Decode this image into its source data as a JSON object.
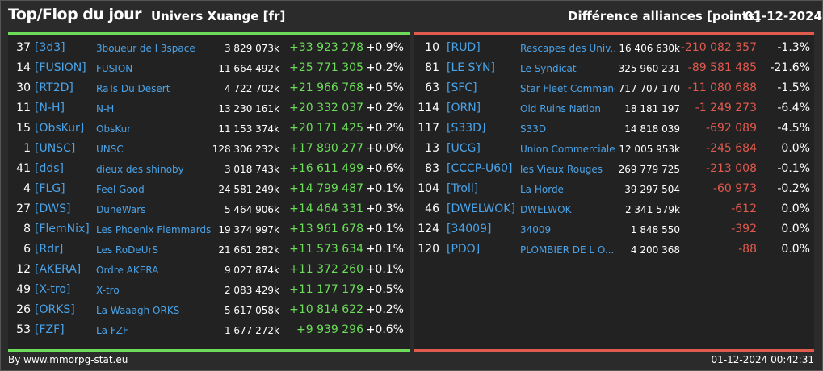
{
  "header": {
    "title": "Top/Flop du jour",
    "universe": "Univers Xuange [fr]",
    "difference_label": "Différence alliances [points]",
    "date": "01-12-2024"
  },
  "top": [
    {
      "rank": "37",
      "tag": "[3d3]",
      "name": "3boueur de l 3space",
      "points": "3 829 073k",
      "diff": "+33 923 278",
      "pct": "+0.9%"
    },
    {
      "rank": "14",
      "tag": "[FUSION]",
      "name": "FUSION",
      "points": "11 664 492k",
      "diff": "+25 771 305",
      "pct": "+0.2%"
    },
    {
      "rank": "30",
      "tag": "[RT2D]",
      "name": "RaTs Du Desert",
      "points": "4 722 702k",
      "diff": "+21 966 768",
      "pct": "+0.5%"
    },
    {
      "rank": "11",
      "tag": "[N-H]",
      "name": "N-H",
      "points": "13 230 161k",
      "diff": "+20 332 037",
      "pct": "+0.2%"
    },
    {
      "rank": "15",
      "tag": "[ObsKur]",
      "name": "ObsKur",
      "points": "11 153 374k",
      "diff": "+20 171 425",
      "pct": "+0.2%"
    },
    {
      "rank": "1",
      "tag": "[UNSC]",
      "name": "UNSC",
      "points": "128 306 232k",
      "diff": "+17 890 277",
      "pct": "+0.0%"
    },
    {
      "rank": "41",
      "tag": "[dds]",
      "name": "dieux des shinoby",
      "points": "3 018 743k",
      "diff": "+16 611 499",
      "pct": "+0.6%"
    },
    {
      "rank": "4",
      "tag": "[FLG]",
      "name": "Feel Good",
      "points": "24 581 249k",
      "diff": "+14 799 487",
      "pct": "+0.1%"
    },
    {
      "rank": "27",
      "tag": "[DWS]",
      "name": "DuneWars",
      "points": "5 464 906k",
      "diff": "+14 464 331",
      "pct": "+0.3%"
    },
    {
      "rank": "8",
      "tag": "[FlemNix]",
      "name": "Les Phoenix Flemmards",
      "points": "19 374 997k",
      "diff": "+13 961 678",
      "pct": "+0.1%"
    },
    {
      "rank": "6",
      "tag": "[Rdr]",
      "name": "Les RoDeUrS",
      "points": "21 661 282k",
      "diff": "+11 573 634",
      "pct": "+0.1%"
    },
    {
      "rank": "12",
      "tag": "[AKERA]",
      "name": "Ordre AKERA",
      "points": "9 027 874k",
      "diff": "+11 372 260",
      "pct": "+0.1%"
    },
    {
      "rank": "49",
      "tag": "[X-tro]",
      "name": "X-tro",
      "points": "2 083 429k",
      "diff": "+11 177 179",
      "pct": "+0.5%"
    },
    {
      "rank": "26",
      "tag": "[ORKS]",
      "name": "La Waaagh ORKS",
      "points": "5 617 058k",
      "diff": "+10 814 622",
      "pct": "+0.2%"
    },
    {
      "rank": "53",
      "tag": "[FZF]",
      "name": "La FZF",
      "points": "1 677 272k",
      "diff": "+9 939 296",
      "pct": "+0.6%"
    }
  ],
  "flop": [
    {
      "rank": "10",
      "tag": "[RUD]",
      "name": "Rescapes des Univ...",
      "points": "16 406 630k",
      "diff": "-210 082 357",
      "pct": "-1.3%"
    },
    {
      "rank": "81",
      "tag": "[LE SYN]",
      "name": "Le Syndicat",
      "points": "325 960 231",
      "diff": "-89 581 485",
      "pct": "-21.6%"
    },
    {
      "rank": "63",
      "tag": "[SFC]",
      "name": "Star Fleet Command",
      "points": "717 707 170",
      "diff": "-11 080 688",
      "pct": "-1.5%"
    },
    {
      "rank": "114",
      "tag": "[ORN]",
      "name": "Old Ruins Nation",
      "points": "18 181 197",
      "diff": "-1 249 273",
      "pct": "-6.4%"
    },
    {
      "rank": "117",
      "tag": "[S33D]",
      "name": "S33D",
      "points": "14 818 039",
      "diff": "-692 089",
      "pct": "-4.5%"
    },
    {
      "rank": "13",
      "tag": "[UCG]",
      "name": "Union Commerciale...",
      "points": "12 005 953k",
      "diff": "-245 684",
      "pct": "0.0%"
    },
    {
      "rank": "83",
      "tag": "[CCCP-U60]",
      "name": "les Vieux Rouges",
      "points": "269 779 725",
      "diff": "-213 008",
      "pct": "-0.1%"
    },
    {
      "rank": "104",
      "tag": "[Troll]",
      "name": "La Horde",
      "points": "39 297 504",
      "diff": "-60 973",
      "pct": "-0.2%"
    },
    {
      "rank": "46",
      "tag": "[DWELWOK]",
      "name": "DWELWOK",
      "points": "2 341 579k",
      "diff": "-612",
      "pct": "0.0%"
    },
    {
      "rank": "124",
      "tag": "[34009]",
      "name": "34009",
      "points": "1 848 550",
      "diff": "-392",
      "pct": "0.0%"
    },
    {
      "rank": "120",
      "tag": "[PDO]",
      "name": "PLOMBIER DE L O...",
      "points": "4 200 368",
      "diff": "-88",
      "pct": "0.0%"
    }
  ],
  "footer": {
    "source": "By www.mmorpg-stat.eu",
    "timestamp": "01-12-2024 00:42:31"
  },
  "colors": {
    "gain": "#6ddc5a",
    "loss": "#e05a4e",
    "link": "#4aa3e8",
    "background": "#2b2b2b",
    "panel": "#222222"
  }
}
